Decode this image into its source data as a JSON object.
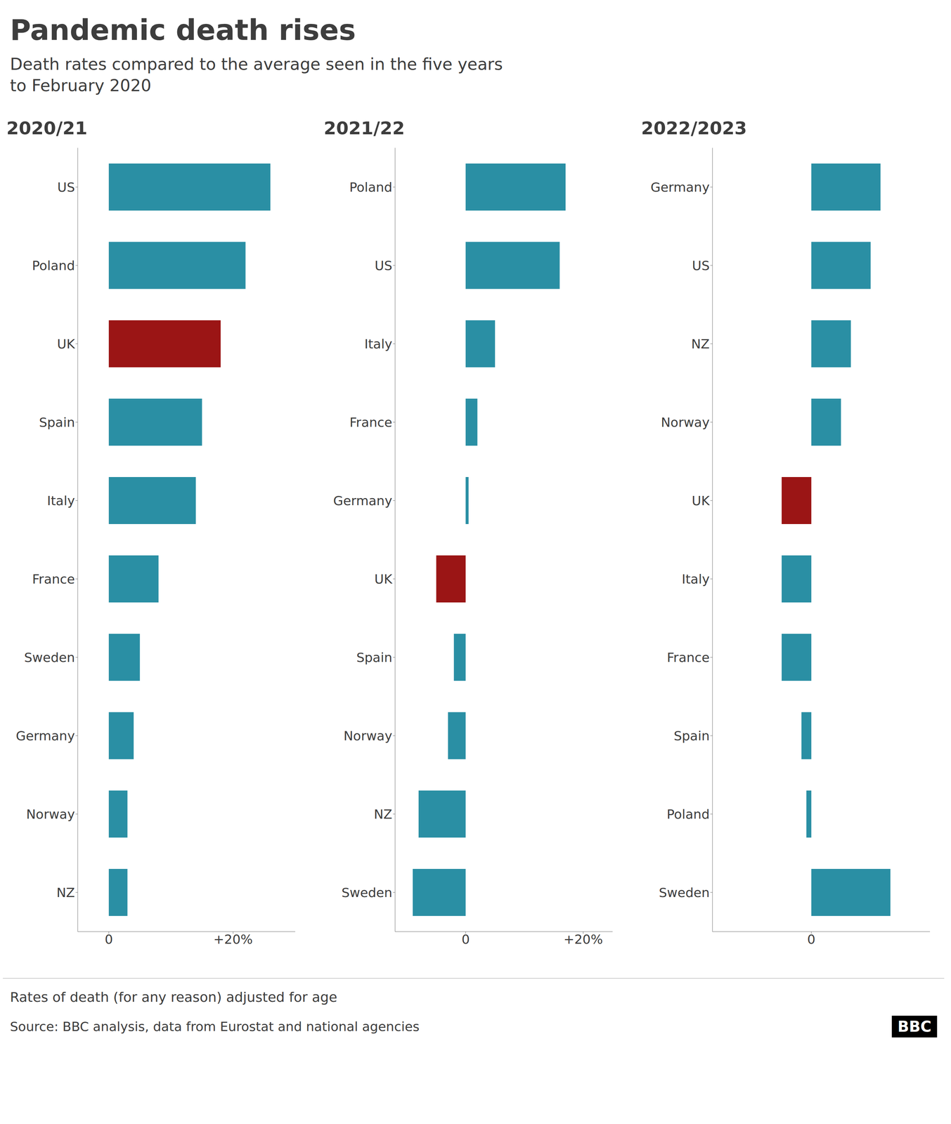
{
  "title": "Pandemic death rises",
  "subtitle": "Death rates compared to the average seen in the five years\nto February 2020",
  "annotations": [
    "Rates of death (for any reason) adjusted for age",
    "Source: BBC analysis, data from Eurostat and national agencies",
    "BBC"
  ],
  "chart_data": [
    {
      "type": "bar",
      "orientation": "horizontal",
      "title": "2020/21",
      "categories": [
        "US",
        "Poland",
        "UK",
        "Spain",
        "Italy",
        "France",
        "Sweden",
        "Germany",
        "Norway",
        "NZ"
      ],
      "values": [
        26,
        22,
        18,
        15,
        14,
        8,
        5,
        4,
        3,
        3
      ],
      "colors": [
        "#2a8fa4",
        "#2a8fa4",
        "#9b1515",
        "#2a8fa4",
        "#2a8fa4",
        "#2a8fa4",
        "#2a8fa4",
        "#2a8fa4",
        "#2a8fa4",
        "#2a8fa4"
      ],
      "xlim": [
        -5,
        30
      ],
      "xticks": [
        0,
        {
          "value": 20,
          "label": "+20%"
        }
      ],
      "grid": false
    },
    {
      "type": "bar",
      "orientation": "horizontal",
      "title": "2021/22",
      "categories": [
        "Poland",
        "US",
        "Italy",
        "France",
        "Germany",
        "UK",
        "Spain",
        "Norway",
        "NZ",
        "Sweden"
      ],
      "values": [
        17,
        16,
        5,
        2,
        0.5,
        -5,
        -2,
        -3,
        -8,
        -9
      ],
      "colors": [
        "#2a8fa4",
        "#2a8fa4",
        "#2a8fa4",
        "#2a8fa4",
        "#2a8fa4",
        "#9b1515",
        "#2a8fa4",
        "#2a8fa4",
        "#2a8fa4",
        "#2a8fa4"
      ],
      "xlim": [
        -12,
        25
      ],
      "xticks": [
        0,
        {
          "value": 20,
          "label": "+20%"
        }
      ],
      "grid": false
    },
    {
      "type": "bar",
      "orientation": "horizontal",
      "title": "2022/2023",
      "categories": [
        "Germany",
        "US",
        "NZ",
        "Norway",
        "UK",
        "Italy",
        "France",
        "Spain",
        "Poland",
        "Sweden"
      ],
      "values": [
        7,
        6,
        4,
        3,
        -3,
        -3,
        -3,
        -1,
        -0.5,
        8
      ],
      "colors": [
        "#2a8fa4",
        "#2a8fa4",
        "#2a8fa4",
        "#2a8fa4",
        "#9b1515",
        "#2a8fa4",
        "#2a8fa4",
        "#2a8fa4",
        "#2a8fa4",
        "#2a8fa4"
      ],
      "xlim": [
        -10,
        12
      ],
      "xticks": [
        0
      ],
      "grid": false
    }
  ]
}
